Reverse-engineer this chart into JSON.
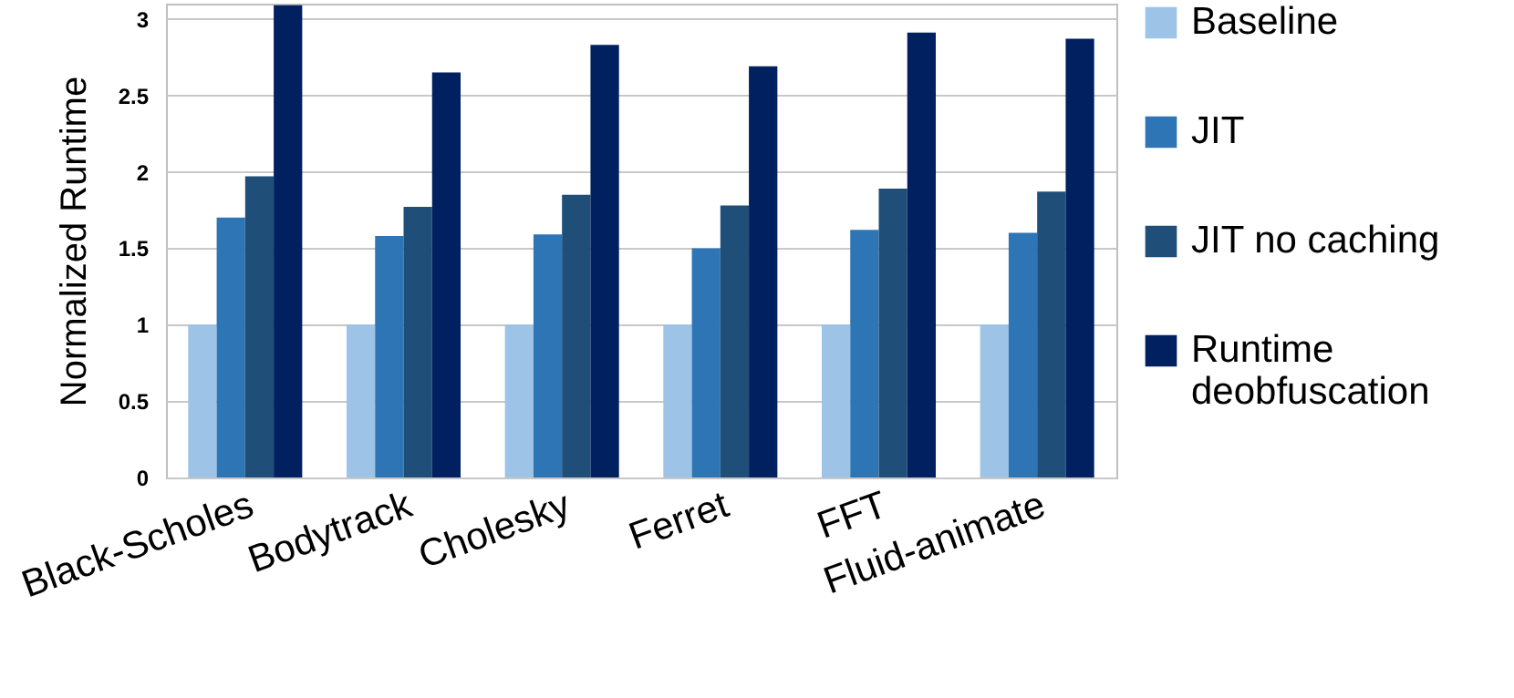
{
  "chart_data": {
    "type": "bar",
    "ylabel": "Normalized Runtime",
    "categories": [
      "Black-Scholes",
      "Bodytrack",
      "Cholesky",
      "Ferret",
      "FFT",
      "Fluid-animate"
    ],
    "series": [
      {
        "name": "Baseline",
        "color": "#9dc3e6",
        "values": [
          1,
          1,
          1,
          1,
          1,
          1
        ]
      },
      {
        "name": "JIT",
        "color": "#2e75b6",
        "values": [
          1.7,
          1.58,
          1.59,
          1.5,
          1.62,
          1.6
        ]
      },
      {
        "name": "JIT no caching",
        "color": "#1f4e79",
        "values": [
          1.97,
          1.77,
          1.85,
          1.78,
          1.89,
          1.87
        ]
      },
      {
        "name": "Runtime deobfuscation",
        "color": "#002060",
        "values": [
          3.09,
          2.65,
          2.83,
          2.69,
          2.91,
          2.87
        ]
      }
    ],
    "ylim": [
      0,
      3.1
    ],
    "yticks": [
      0,
      0.5,
      1,
      1.5,
      2,
      2.5,
      3
    ],
    "grid": "y",
    "legend": "right"
  }
}
